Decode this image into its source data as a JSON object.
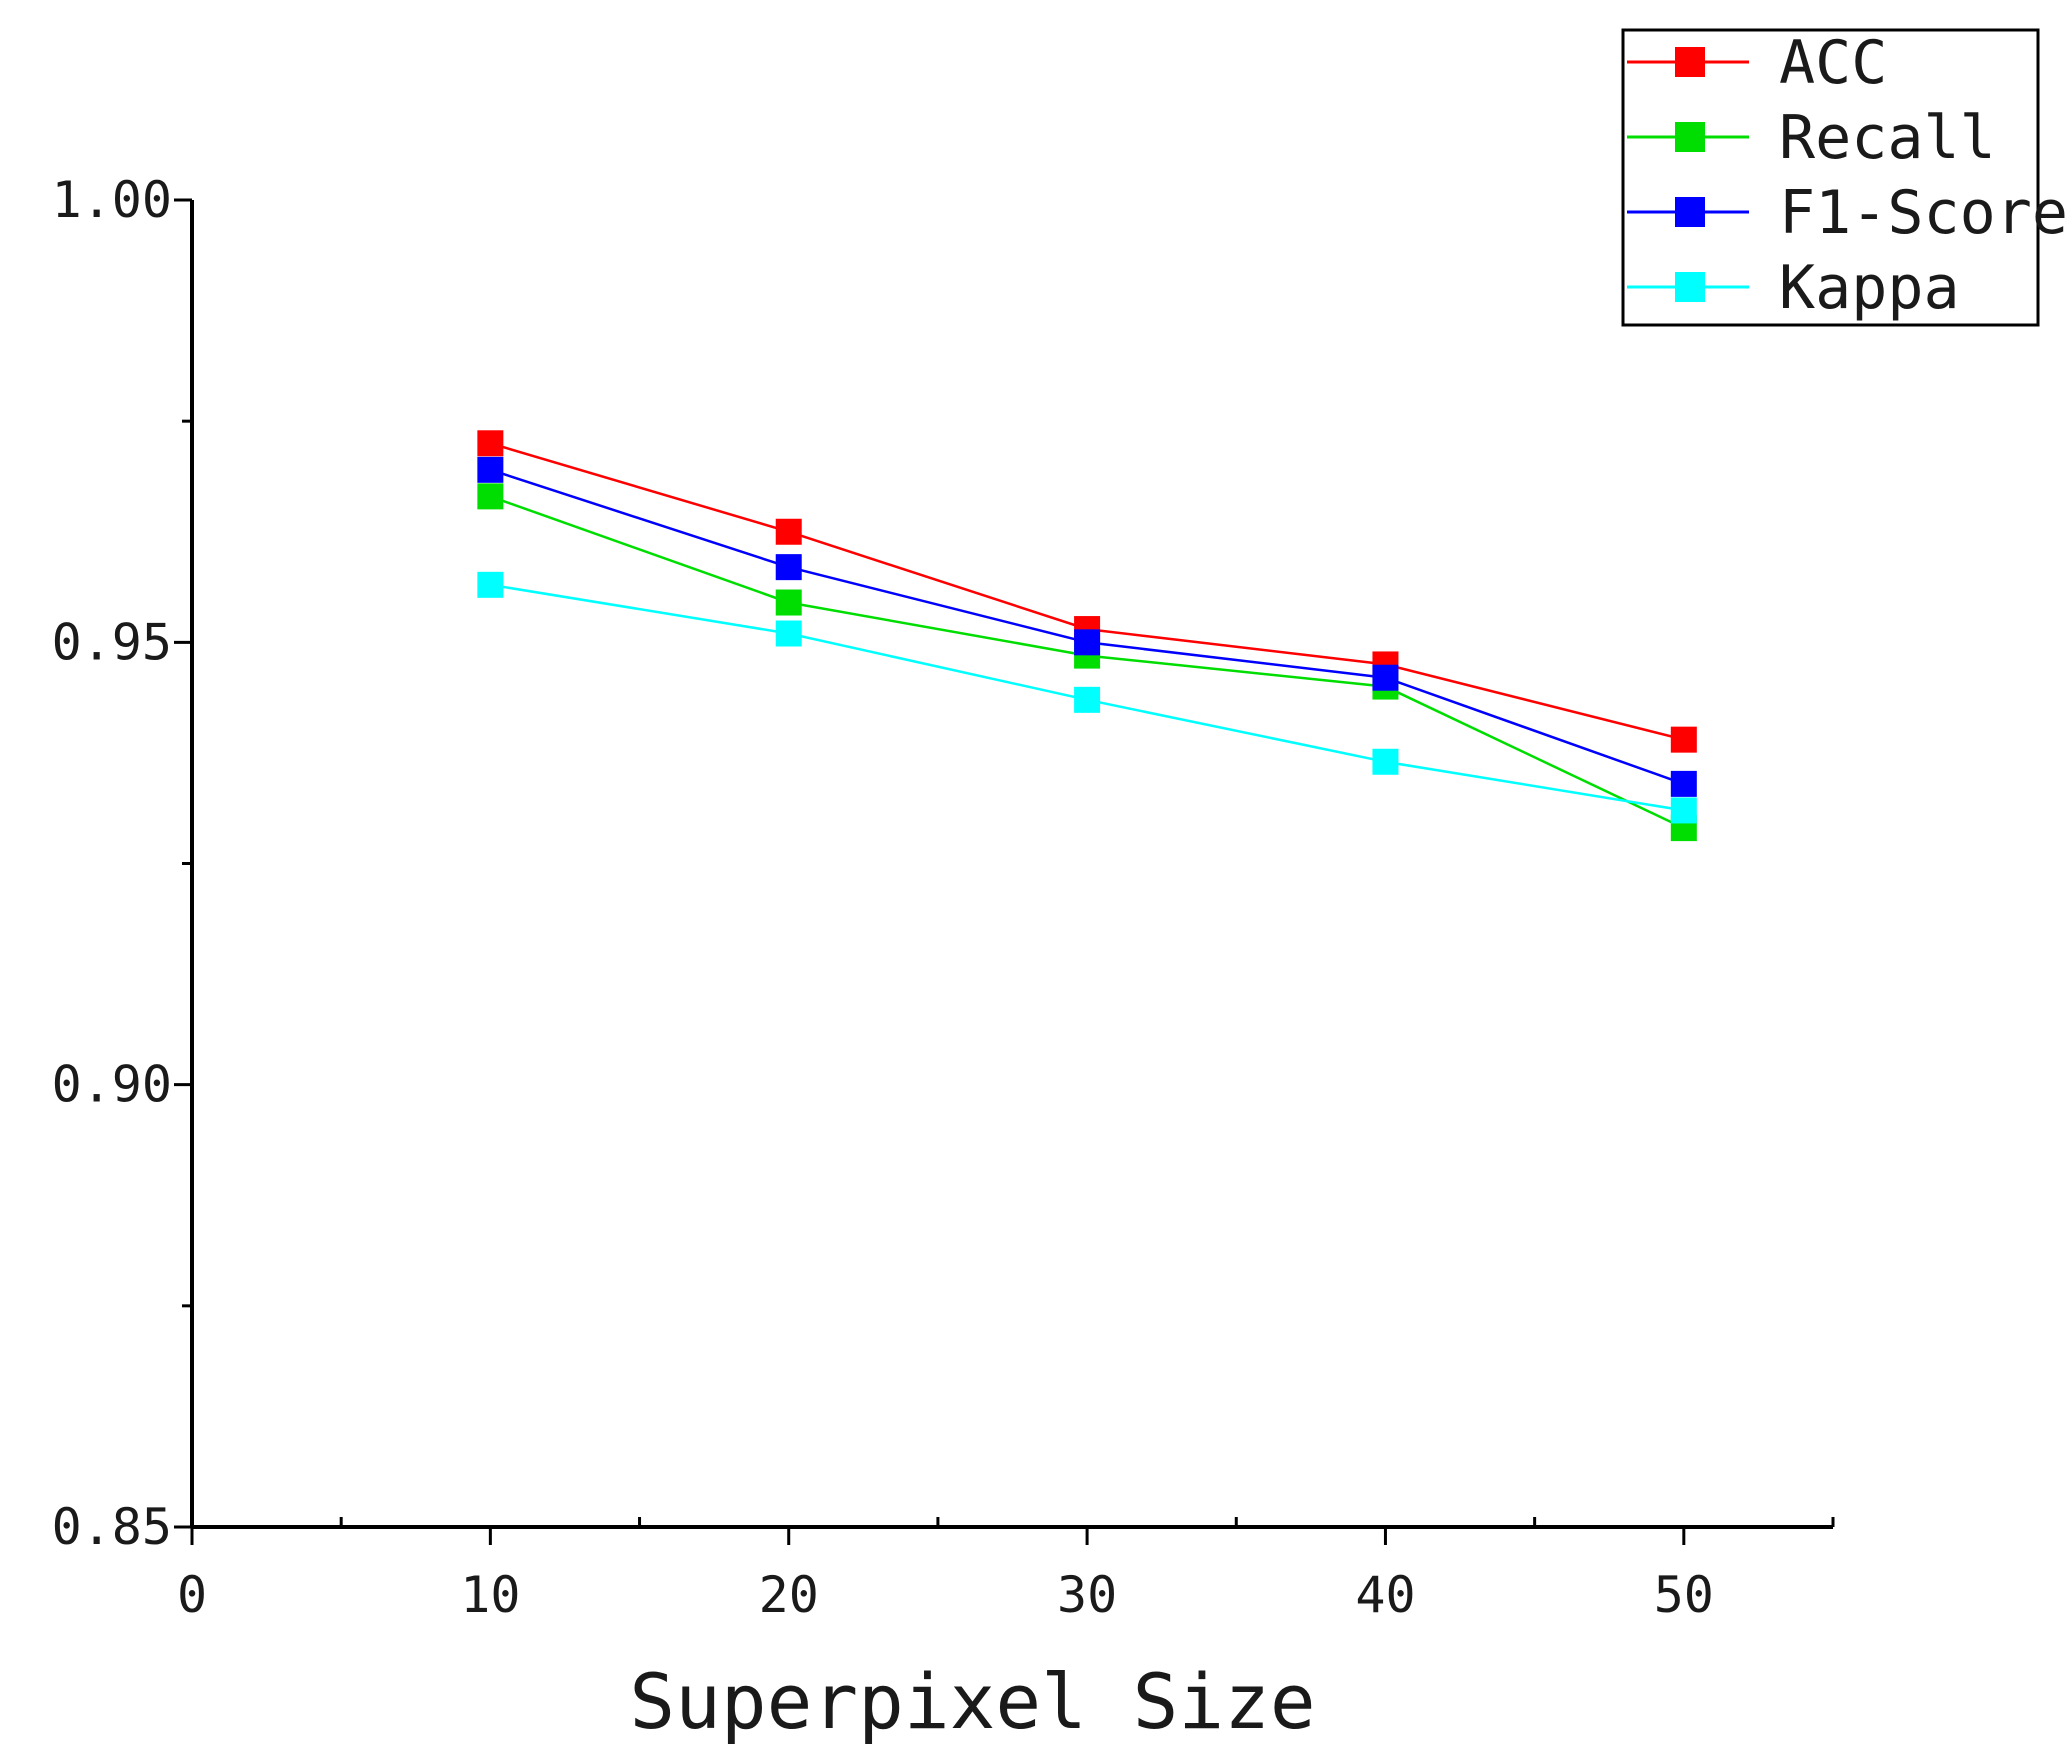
{
  "chart_data": {
    "type": "line",
    "title": "",
    "xlabel": "Superpixel Size",
    "ylabel": "",
    "xlim": [
      0,
      55
    ],
    "ylim": [
      0.85,
      1.0
    ],
    "x": [
      10,
      20,
      30,
      40,
      50
    ],
    "x_ticks": [
      0,
      10,
      20,
      30,
      40,
      50
    ],
    "x_tick_labels": [
      "0",
      "10",
      "20",
      "30",
      "40",
      "50"
    ],
    "x_minor_ticks": [
      5,
      15,
      25,
      35,
      45,
      55
    ],
    "y_ticks": [
      0.85,
      0.9,
      0.95,
      1.0
    ],
    "y_tick_labels": [
      "0.85",
      "0.90",
      "0.95",
      "1.00"
    ],
    "y_minor_ticks": [
      0.875,
      0.925,
      0.975
    ],
    "grid": false,
    "legend_position": "top-right",
    "series": [
      {
        "name": "ACC",
        "color": "#ff0000",
        "values": [
          0.9725,
          0.9625,
          0.9515,
          0.9475,
          0.939
        ]
      },
      {
        "name": "Recall",
        "color": "#00dd00",
        "values": [
          0.9665,
          0.9545,
          0.9485,
          0.945,
          0.929
        ]
      },
      {
        "name": "F1-Score",
        "color": "#0000ff",
        "values": [
          0.9695,
          0.9585,
          0.95,
          0.946,
          0.934
        ]
      },
      {
        "name": "Kappa",
        "color": "#00ffff",
        "values": [
          0.9565,
          0.951,
          0.9435,
          0.9365,
          0.931
        ]
      }
    ]
  }
}
